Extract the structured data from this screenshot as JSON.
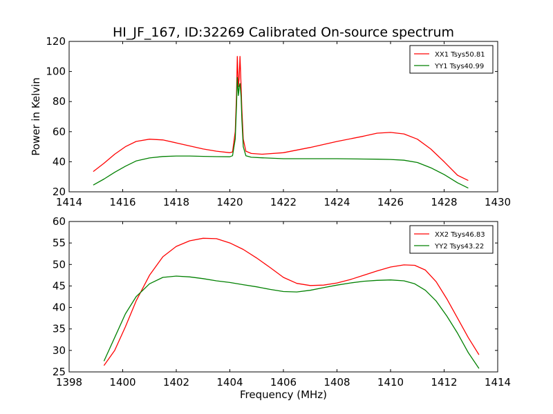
{
  "figure": {
    "title": "HI_JF_167, ID:32269 Calibrated On-source spectrum",
    "xlabel": "Frequency (MHz)",
    "ylabel": "Power in Kelvin"
  },
  "chart_data": [
    {
      "type": "line",
      "title": "HI_JF_167, ID:32269 Calibrated On-source spectrum",
      "xlabel": "",
      "ylabel": "Power in Kelvin",
      "xlim": [
        1414,
        1430
      ],
      "ylim": [
        20,
        120
      ],
      "xticks": [
        1414,
        1416,
        1418,
        1420,
        1422,
        1424,
        1426,
        1428,
        1430
      ],
      "yticks": [
        20,
        40,
        60,
        80,
        100,
        120
      ],
      "grid": false,
      "legend_position": "top-right",
      "series": [
        {
          "name": "XX1 Tsys50.81",
          "color": "#ff0000",
          "x": [
            1414.9,
            1415.3,
            1415.7,
            1416.1,
            1416.5,
            1417.0,
            1417.5,
            1418.0,
            1418.5,
            1419.0,
            1419.5,
            1420.0,
            1420.1,
            1420.2,
            1420.25,
            1420.28,
            1420.32,
            1420.35,
            1420.38,
            1420.42,
            1420.45,
            1420.5,
            1420.6,
            1420.8,
            1421.2,
            1422.0,
            1423.0,
            1424.0,
            1425.0,
            1425.5,
            1426.0,
            1426.5,
            1427.0,
            1427.5,
            1428.0,
            1428.5,
            1428.9
          ],
          "values": [
            33.5,
            39,
            45,
            50,
            53.5,
            55,
            54.5,
            52.5,
            50.5,
            48.5,
            47,
            46,
            46.5,
            60,
            85,
            110,
            90,
            96,
            110,
            90,
            75,
            55,
            47,
            45.5,
            45,
            46,
            49.5,
            53.5,
            57,
            59,
            59.5,
            58.5,
            55,
            48.5,
            40,
            31,
            27.5
          ]
        },
        {
          "name": "YY1 Tsys40.99",
          "color": "#008000",
          "x": [
            1414.9,
            1415.3,
            1415.7,
            1416.1,
            1416.5,
            1417.0,
            1417.5,
            1418.0,
            1418.5,
            1419.0,
            1419.5,
            1420.0,
            1420.1,
            1420.2,
            1420.25,
            1420.28,
            1420.32,
            1420.35,
            1420.38,
            1420.42,
            1420.45,
            1420.5,
            1420.6,
            1420.8,
            1421.2,
            1422.0,
            1423.0,
            1424.0,
            1425.0,
            1425.5,
            1426.0,
            1426.5,
            1427.0,
            1427.5,
            1428.0,
            1428.5,
            1428.9
          ],
          "values": [
            24.5,
            28.5,
            33,
            37,
            40.5,
            42.5,
            43.5,
            43.8,
            43.8,
            43.6,
            43.4,
            43.3,
            44,
            55,
            78,
            96,
            84,
            90,
            92,
            83,
            68,
            50,
            44,
            43,
            42.6,
            42,
            42,
            42,
            41.8,
            41.7,
            41.5,
            41,
            39.5,
            36,
            31.5,
            26,
            22.5
          ]
        }
      ]
    },
    {
      "type": "line",
      "title": "",
      "xlabel": "Frequency (MHz)",
      "ylabel": "",
      "xlim": [
        1398,
        1414
      ],
      "ylim": [
        25,
        60
      ],
      "xticks": [
        1398,
        1400,
        1402,
        1404,
        1406,
        1408,
        1410,
        1412,
        1414
      ],
      "yticks": [
        25,
        30,
        35,
        40,
        45,
        50,
        55,
        60
      ],
      "grid": false,
      "legend_position": "top-right",
      "series": [
        {
          "name": "XX2 Tsys46.83",
          "color": "#ff0000",
          "x": [
            1399.3,
            1399.7,
            1400.1,
            1400.5,
            1401.0,
            1401.5,
            1402.0,
            1402.5,
            1403.0,
            1403.5,
            1404.0,
            1404.5,
            1405.0,
            1405.5,
            1406.0,
            1406.5,
            1407.0,
            1407.5,
            1408.0,
            1408.5,
            1409.0,
            1409.5,
            1410.0,
            1410.5,
            1410.9,
            1411.3,
            1411.7,
            1412.1,
            1412.5,
            1412.9,
            1413.3
          ],
          "values": [
            26.5,
            30,
            35.5,
            41.5,
            47.5,
            51.8,
            54.2,
            55.5,
            56.1,
            56,
            55,
            53.5,
            51.5,
            49.3,
            47,
            45.6,
            45.1,
            45.2,
            45.7,
            46.5,
            47.5,
            48.5,
            49.4,
            49.9,
            49.8,
            48.7,
            46,
            42,
            37.5,
            33,
            29
          ]
        },
        {
          "name": "YY2 Tsys43.22",
          "color": "#008000",
          "x": [
            1399.3,
            1399.7,
            1400.1,
            1400.5,
            1401.0,
            1401.5,
            1402.0,
            1402.5,
            1403.0,
            1403.5,
            1404.0,
            1404.5,
            1405.0,
            1405.5,
            1406.0,
            1406.5,
            1407.0,
            1407.5,
            1408.0,
            1408.5,
            1409.0,
            1409.5,
            1410.0,
            1410.5,
            1410.9,
            1411.3,
            1411.7,
            1412.1,
            1412.5,
            1412.9,
            1413.3
          ],
          "values": [
            27.5,
            33,
            38.5,
            42.5,
            45.5,
            47,
            47.3,
            47.1,
            46.7,
            46.2,
            45.8,
            45.3,
            44.8,
            44.2,
            43.7,
            43.6,
            44,
            44.6,
            45.2,
            45.7,
            46.1,
            46.3,
            46.4,
            46.2,
            45.5,
            44,
            41.5,
            38,
            34,
            29.5,
            25.8
          ]
        }
      ]
    }
  ]
}
